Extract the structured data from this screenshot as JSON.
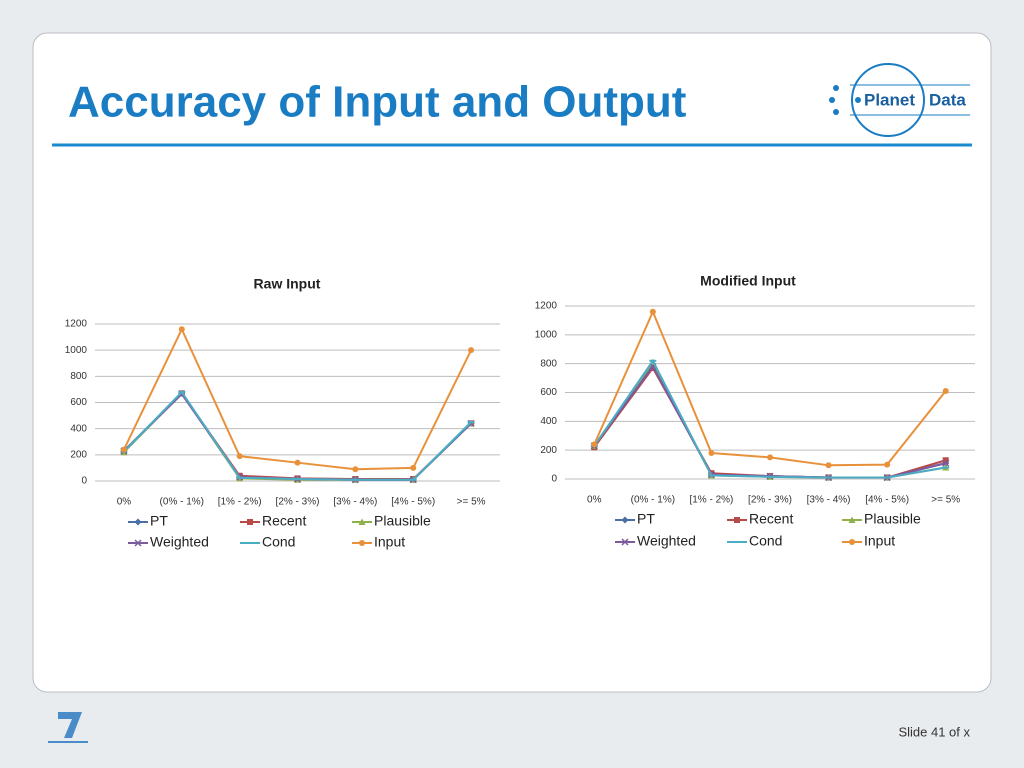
{
  "title": "Accuracy of Input and Output",
  "logo": [
    "Planet",
    "Data"
  ],
  "footer": "Slide 41 of x",
  "chart_data": [
    {
      "type": "line",
      "title": "Raw Input",
      "categories": [
        "0%",
        "(0% - 1%)",
        "[1% - 2%)",
        "[2% - 3%)",
        "[3% - 4%)",
        "[4% - 5%)",
        ">= 5%"
      ],
      "ylim": [
        0,
        1200
      ],
      "yticks": [
        0,
        200,
        400,
        600,
        800,
        1000,
        1200
      ],
      "grid": true,
      "legend": "bottom",
      "series": [
        {
          "name": "PT",
          "color": "#4a6fa5",
          "values": [
            230,
            670,
            30,
            15,
            10,
            10,
            440
          ]
        },
        {
          "name": "Recent",
          "color": "#b94a48",
          "values": [
            230,
            670,
            40,
            20,
            15,
            15,
            440
          ]
        },
        {
          "name": "Plausible",
          "color": "#8fb04a",
          "values": [
            220,
            670,
            20,
            10,
            10,
            10,
            440
          ]
        },
        {
          "name": "Weighted",
          "color": "#7b5a9e",
          "values": [
            230,
            665,
            30,
            15,
            10,
            10,
            440
          ]
        },
        {
          "name": "Cond",
          "color": "#4bacc6",
          "values": [
            225,
            680,
            25,
            15,
            10,
            10,
            450
          ]
        },
        {
          "name": "Input",
          "color": "#e8913a",
          "values": [
            240,
            1160,
            190,
            140,
            90,
            100,
            1000
          ]
        }
      ]
    },
    {
      "type": "line",
      "title": "Modified Input",
      "categories": [
        "0%",
        "(0% - 1%)",
        "[1% - 2%)",
        "[2% - 3%)",
        "[3% - 4%)",
        "[4% - 5%)",
        ">= 5%"
      ],
      "ylim": [
        0,
        1200
      ],
      "yticks": [
        0,
        200,
        400,
        600,
        800,
        1000,
        1200
      ],
      "grid": true,
      "legend": "bottom",
      "series": [
        {
          "name": "PT",
          "color": "#4a6fa5",
          "values": [
            230,
            790,
            30,
            20,
            10,
            10,
            110
          ]
        },
        {
          "name": "Recent",
          "color": "#b94a48",
          "values": [
            220,
            770,
            40,
            20,
            10,
            10,
            130
          ]
        },
        {
          "name": "Plausible",
          "color": "#8fb04a",
          "values": [
            230,
            810,
            25,
            15,
            10,
            10,
            80
          ]
        },
        {
          "name": "Weighted",
          "color": "#7b5a9e",
          "values": [
            230,
            780,
            30,
            20,
            10,
            10,
            110
          ]
        },
        {
          "name": "Cond",
          "color": "#4bacc6",
          "values": [
            230,
            820,
            25,
            15,
            10,
            10,
            80
          ]
        },
        {
          "name": "Input",
          "color": "#e8913a",
          "values": [
            240,
            1160,
            180,
            150,
            95,
            100,
            610
          ]
        }
      ]
    }
  ]
}
